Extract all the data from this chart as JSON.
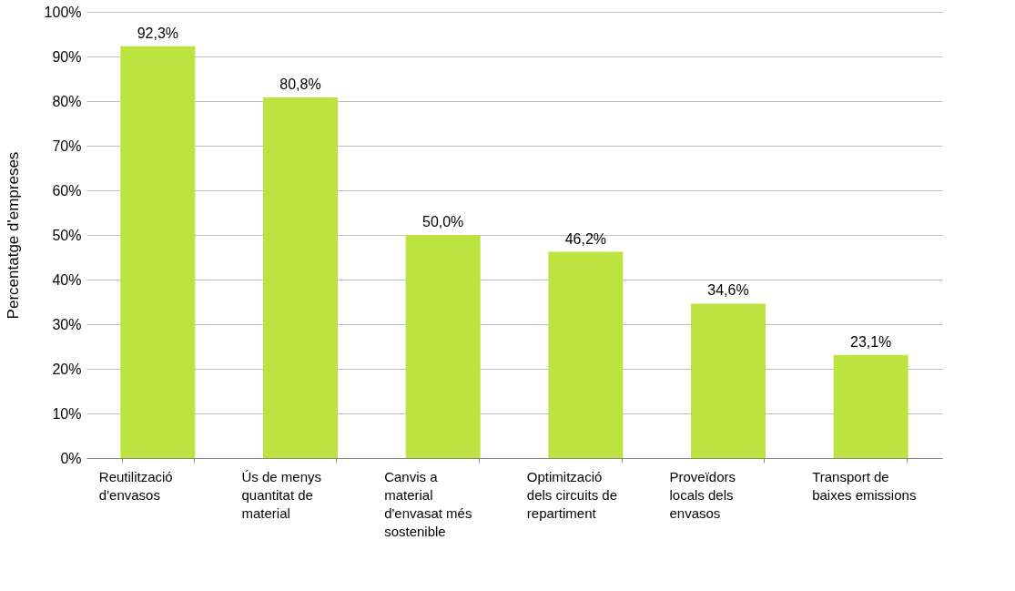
{
  "chart_data": {
    "type": "bar",
    "ylabel": "Percentatge d'empreses",
    "categories": [
      "Reutilització d'envasos",
      "Ús de menys quantitat de material",
      "Canvis a material d'envasat més sostenible",
      "Optimització dels circuits de repartiment",
      "Proveïdors locals dels envasos",
      "Transport de baixes emissions"
    ],
    "values": [
      92.3,
      80.8,
      50.0,
      46.2,
      34.6,
      23.1
    ],
    "value_labels": [
      "92,3%",
      "80,8%",
      "50,0%",
      "46,2%",
      "34,6%",
      "23,1%"
    ],
    "color": "#bce33f",
    "ylim": [
      0,
      100
    ],
    "yticks": [
      {
        "value": 0,
        "label": "0%"
      },
      {
        "value": 10,
        "label": "10%"
      },
      {
        "value": 20,
        "label": "20%"
      },
      {
        "value": 30,
        "label": "30%"
      },
      {
        "value": 40,
        "label": "40%"
      },
      {
        "value": 50,
        "label": "50%"
      },
      {
        "value": 60,
        "label": "60%"
      },
      {
        "value": 70,
        "label": "70%"
      },
      {
        "value": 80,
        "label": "80%"
      },
      {
        "value": 90,
        "label": "90%"
      },
      {
        "value": 100,
        "label": "100%"
      }
    ],
    "grid": "y"
  }
}
